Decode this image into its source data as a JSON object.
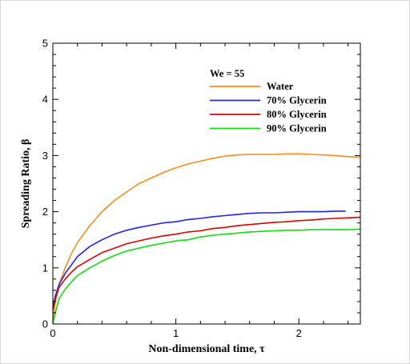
{
  "chart_data": {
    "type": "line",
    "title": "",
    "xlabel": "Non-dimensional time, τ",
    "ylabel": "Spreading Ratio, β",
    "xlim": [
      0,
      2.5
    ],
    "ylim": [
      0,
      5
    ],
    "xticks": [
      0,
      1,
      2
    ],
    "yticks": [
      0,
      1,
      2,
      3,
      4,
      5
    ],
    "grid": false,
    "legend_title": "We = 55",
    "legend_position": "upper-middle",
    "series": [
      {
        "name": "Water",
        "color": "#ff8c1a",
        "x": [
          0.0,
          0.02,
          0.05,
          0.1,
          0.15,
          0.2,
          0.3,
          0.4,
          0.5,
          0.6,
          0.7,
          0.8,
          0.9,
          1.0,
          1.1,
          1.2,
          1.3,
          1.4,
          1.5,
          1.6,
          1.7,
          1.8,
          1.9,
          2.0,
          2.1,
          2.2,
          2.3,
          2.4,
          2.5
        ],
        "y": [
          0.05,
          0.4,
          0.7,
          1.0,
          1.25,
          1.45,
          1.75,
          2.0,
          2.2,
          2.35,
          2.5,
          2.6,
          2.7,
          2.78,
          2.85,
          2.9,
          2.95,
          2.99,
          3.01,
          3.02,
          3.02,
          3.02,
          3.03,
          3.03,
          3.02,
          3.01,
          3.0,
          2.98,
          2.97
        ]
      },
      {
        "name": "70% Glycerin",
        "color": "#2020ee",
        "x": [
          0.0,
          0.02,
          0.05,
          0.1,
          0.15,
          0.2,
          0.3,
          0.4,
          0.5,
          0.6,
          0.7,
          0.8,
          0.9,
          1.0,
          1.1,
          1.2,
          1.3,
          1.4,
          1.5,
          1.6,
          1.7,
          1.8,
          1.9,
          2.0,
          2.1,
          2.2,
          2.3,
          2.38
        ],
        "y": [
          0.3,
          0.5,
          0.7,
          0.9,
          1.05,
          1.2,
          1.38,
          1.5,
          1.6,
          1.67,
          1.72,
          1.76,
          1.8,
          1.82,
          1.86,
          1.88,
          1.91,
          1.93,
          1.95,
          1.97,
          1.98,
          1.98,
          1.99,
          2.0,
          2.0,
          2.0,
          2.01,
          2.01
        ]
      },
      {
        "name": "80% Glycerin",
        "color": "#dd0000",
        "x": [
          0.0,
          0.02,
          0.05,
          0.1,
          0.15,
          0.2,
          0.3,
          0.4,
          0.5,
          0.6,
          0.7,
          0.8,
          0.9,
          1.0,
          1.1,
          1.2,
          1.3,
          1.4,
          1.5,
          1.6,
          1.7,
          1.8,
          1.9,
          2.0,
          2.1,
          2.2,
          2.3,
          2.4,
          2.5
        ],
        "y": [
          0.25,
          0.45,
          0.65,
          0.8,
          0.92,
          1.02,
          1.15,
          1.27,
          1.35,
          1.43,
          1.48,
          1.53,
          1.57,
          1.6,
          1.64,
          1.66,
          1.7,
          1.72,
          1.75,
          1.77,
          1.79,
          1.81,
          1.82,
          1.84,
          1.85,
          1.87,
          1.88,
          1.89,
          1.9
        ]
      },
      {
        "name": "90% Glycerin",
        "color": "#11dd11",
        "x": [
          0.0,
          0.02,
          0.05,
          0.1,
          0.15,
          0.2,
          0.3,
          0.4,
          0.5,
          0.6,
          0.7,
          0.8,
          0.9,
          1.0,
          1.1,
          1.2,
          1.3,
          1.4,
          1.5,
          1.6,
          1.7,
          1.8,
          1.9,
          2.0,
          2.1,
          2.2,
          2.3,
          2.4,
          2.5
        ],
        "y": [
          0.0,
          0.2,
          0.45,
          0.62,
          0.75,
          0.86,
          1.0,
          1.12,
          1.22,
          1.3,
          1.35,
          1.4,
          1.44,
          1.48,
          1.5,
          1.55,
          1.58,
          1.6,
          1.62,
          1.64,
          1.65,
          1.66,
          1.67,
          1.67,
          1.68,
          1.68,
          1.68,
          1.68,
          1.69
        ]
      }
    ]
  }
}
